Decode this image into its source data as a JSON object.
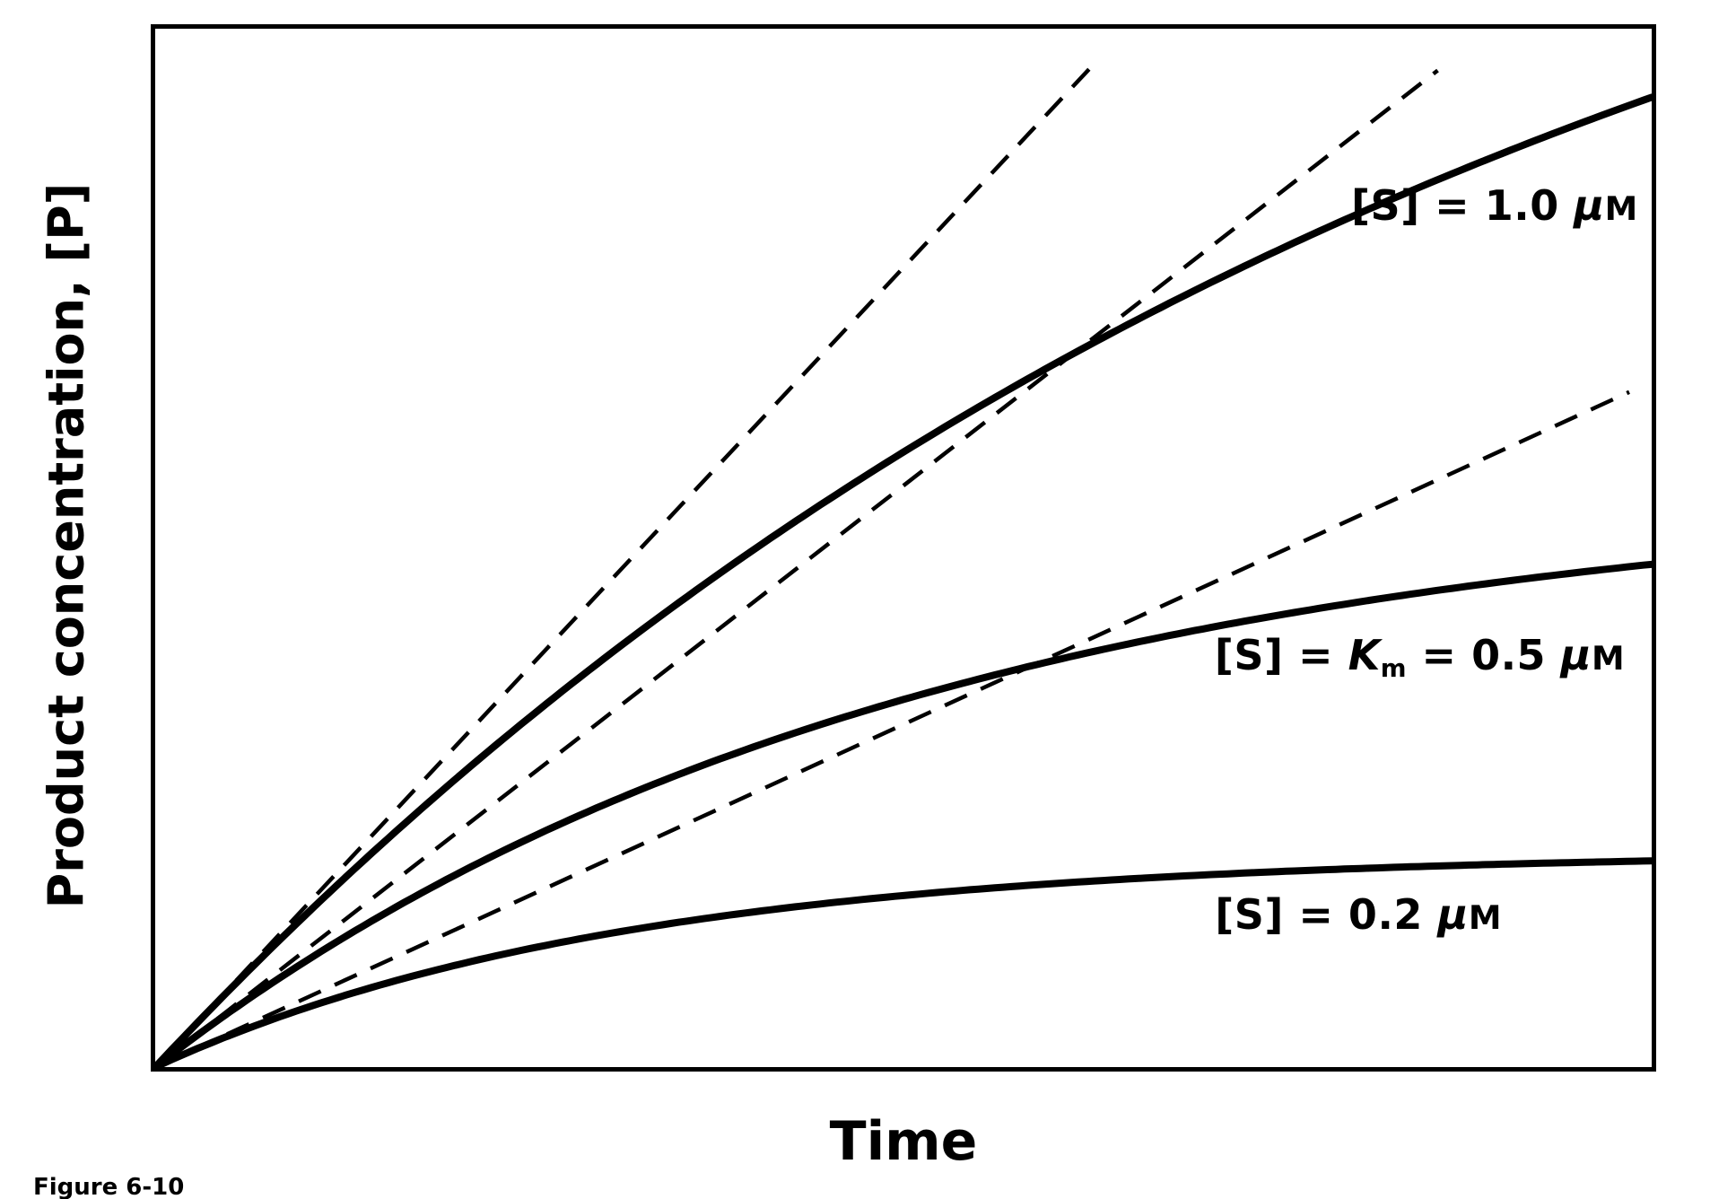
{
  "figure": {
    "caption": "Figure 6-10"
  },
  "chart_data": {
    "type": "line",
    "title": "",
    "xlabel": "Time",
    "ylabel": "Product concentration, [P]",
    "x_range": [
      0,
      1
    ],
    "y_range": [
      0,
      1
    ],
    "axes": {
      "frame": true,
      "ticks": false,
      "gridlines": false,
      "tick_labels": "none"
    },
    "legend": "none (curves labeled directly on plot)",
    "colors": {
      "line": "#000000",
      "background": "#ffffff"
    },
    "x_samples": [
      0,
      0.1,
      0.2,
      0.3,
      0.4,
      0.5,
      0.6,
      0.7,
      0.8,
      0.9,
      1.0
    ],
    "series": [
      {
        "name": "[S] = 1.0 μM",
        "line": "solid",
        "model": "exponential_saturation",
        "amplitude": 1.4,
        "rate": 1.1,
        "x_end": 1.0,
        "values": [
          0,
          0.146,
          0.277,
          0.393,
          0.498,
          0.592,
          0.676,
          0.752,
          0.819,
          0.88,
          0.934
        ]
      },
      {
        "name": "[S] = Km = 0.5 μM",
        "line": "solid",
        "model": "exponential_saturation",
        "amplitude": 0.56,
        "rate": 2.0,
        "x_end": 1.0,
        "values": [
          0,
          0.102,
          0.185,
          0.253,
          0.308,
          0.354,
          0.391,
          0.422,
          0.447,
          0.467,
          0.484
        ]
      },
      {
        "name": "[S] = 0.2 μM",
        "line": "solid",
        "model": "exponential_saturation",
        "amplitude": 0.207,
        "rate": 3.2,
        "x_end": 1.0,
        "values": [
          0,
          0.057,
          0.098,
          0.128,
          0.149,
          0.165,
          0.177,
          0.185,
          0.191,
          0.195,
          0.199
        ]
      }
    ],
    "initial_velocity_tangents": [
      {
        "for": "[S] = 1.0 μM",
        "line": "dashed",
        "slope": 1.54,
        "x_start": 0,
        "x_end": 0.625
      },
      {
        "for": "[S] = Km = 0.5 μM",
        "line": "dashed",
        "slope": 1.12,
        "x_start": 0,
        "x_end": 0.857
      },
      {
        "for": "[S] = 0.2 μM",
        "line": "dashed",
        "slope": 0.66,
        "x_start": 0,
        "x_end": 0.985
      }
    ],
    "annotations": [
      {
        "text": "[S] = 1.0 μM",
        "x": 0.895,
        "y": 0.83,
        "segments": [
          {
            "t": "[S] = 1.0 "
          },
          {
            "t": "μ",
            "i": true
          },
          {
            "t": "M",
            "sc": true
          }
        ]
      },
      {
        "text": "[S] = Km = 0.5 μM",
        "x": 0.845,
        "y": 0.395,
        "segments": [
          {
            "t": "[S] = "
          },
          {
            "t": "K",
            "i": true
          },
          {
            "t": "m",
            "sub": true
          },
          {
            "t": " = 0.5 "
          },
          {
            "t": "μ",
            "i": true
          },
          {
            "t": "M",
            "sc": true
          }
        ]
      },
      {
        "text": "[S] = 0.2 μM",
        "x": 0.804,
        "y": 0.147,
        "segments": [
          {
            "t": "[S] = 0.2 "
          },
          {
            "t": "μ",
            "i": true
          },
          {
            "t": "M",
            "sc": true
          }
        ]
      }
    ]
  }
}
